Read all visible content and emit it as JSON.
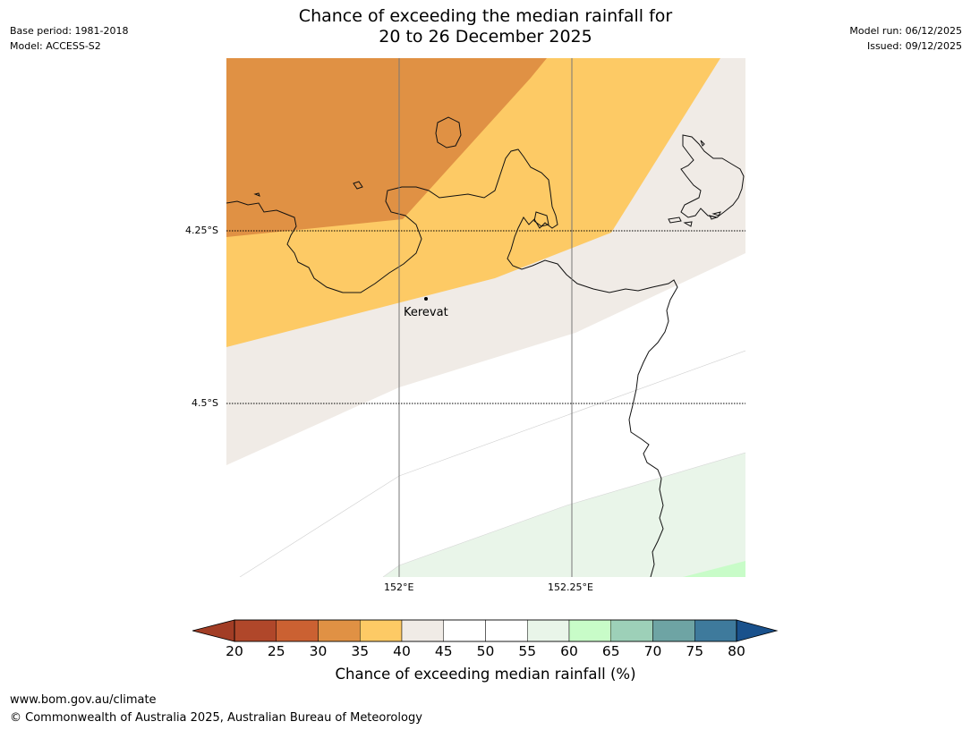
{
  "header": {
    "base_period": "Base period: 1981-2018",
    "model": "Model: ACCESS-S2",
    "title_line1": "Chance of exceeding the median rainfall for",
    "title_line2": "20 to 26 December 2025",
    "model_run": "Model run: 06/12/2025",
    "issued": "Issued: 09/12/2025"
  },
  "map": {
    "latitude_labels": [
      "4.25°S",
      "4.5°S"
    ],
    "longitude_labels": [
      "152°E",
      "152.25°E"
    ],
    "place": "Kerevat"
  },
  "legend": {
    "title": "Chance of exceeding median rainfall (%)",
    "ticks": [
      "20",
      "25",
      "30",
      "35",
      "40",
      "45",
      "50",
      "55",
      "60",
      "65",
      "70",
      "75",
      "80"
    ],
    "colors": [
      "#a23d25",
      "#b0472a",
      "#cb6132",
      "#e09144",
      "#fdca65",
      "#f0ebe6",
      "#ffffff",
      "#ffffff",
      "#e9f5e9",
      "#c8fcc8",
      "#9dd0b8",
      "#6ea4a4",
      "#3e7a9c",
      "#19518c"
    ]
  },
  "footer": {
    "url": "www.bom.gov.au/climate",
    "copyright": "© Commonwealth of Australia 2025, Australian Bureau of Meteorology"
  }
}
